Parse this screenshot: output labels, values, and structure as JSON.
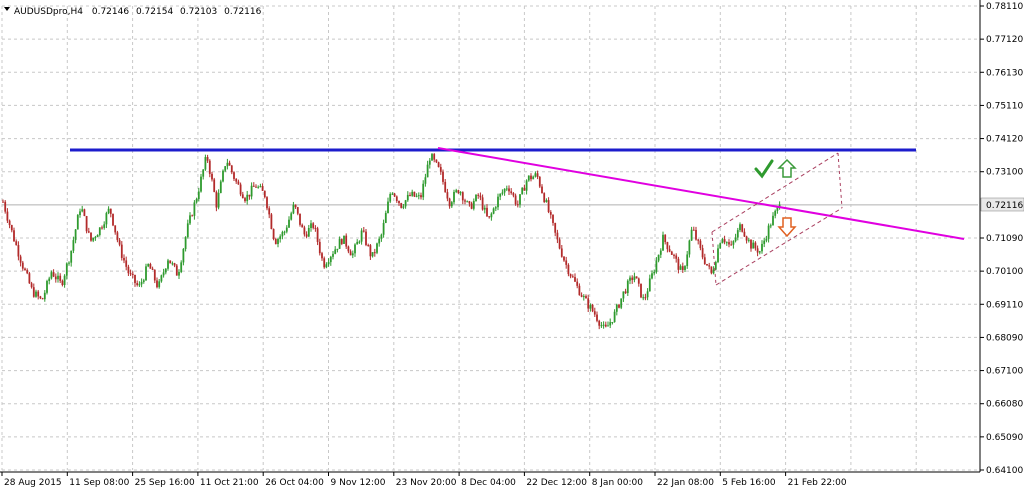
{
  "symbol_header": {
    "symbol": "AUDUSDpro,H4",
    "open": "0.72146",
    "high": "0.72154",
    "low": "0.72103",
    "close": "0.72116"
  },
  "current_price": "0.72116",
  "colors": {
    "bull": "#2e9a2e",
    "bear": "#b22a2a",
    "grid": "#c8c8c8",
    "resistance": "#1c1ccc",
    "trendline": "#e000e0",
    "channel": "#aa4060",
    "arrow_up": "#3a9a3a",
    "arrow_down": "#e06020",
    "check": "#2e9a2e"
  },
  "chart_data": {
    "type": "candlestick",
    "symbol": "AUDUSDpro",
    "timeframe": "H4",
    "y_ticks": [
      "0.78110",
      "0.77120",
      "0.76130",
      "0.75110",
      "0.74120",
      "0.73100",
      "0.72116",
      "0.71090",
      "0.70100",
      "0.69110",
      "0.68090",
      "0.67100",
      "0.66080",
      "0.65090",
      "0.64100"
    ],
    "x_ticks": [
      "28 Aug 2015",
      "11 Sep 08:00",
      "25 Sep 16:00",
      "11 Oct 21:00",
      "26 Oct 04:00",
      "9 Nov 12:00",
      "23 Nov 20:00",
      "8 Dec 04:00",
      "22 Dec 12:00",
      "8 Jan 00:00",
      "22 Jan 08:00",
      "5 Feb 16:00",
      "21 Feb 22:00"
    ],
    "ylim": [
      0.641,
      0.7811
    ],
    "last_price": 0.72116,
    "price_path": [
      [
        0.722,
        0.712,
        0.703,
        0.695,
        0.692,
        0.701,
        0.697,
        0.707,
        0.721,
        0.71,
        0.714,
        0.72,
        0.708,
        0.7,
        0.696,
        0.703,
        0.696,
        0.705,
        0.7,
        0.714,
        0.724,
        0.736,
        0.721,
        0.735,
        0.728,
        0.723,
        0.727,
        0.724,
        0.71,
        0.713,
        0.721,
        0.712,
        0.715,
        0.703,
        0.707,
        0.711,
        0.706,
        0.713,
        0.705,
        0.712,
        0.726,
        0.721,
        0.724,
        0.723,
        0.736,
        0.731,
        0.722,
        0.726,
        0.72,
        0.724,
        0.716,
        0.723,
        0.727,
        0.721,
        0.729,
        0.73,
        0.721,
        0.711,
        0.703,
        0.697,
        0.692,
        0.688,
        0.683,
        0.688,
        0.695,
        0.7,
        0.692,
        0.701,
        0.711,
        0.706,
        0.7,
        0.714,
        0.706,
        0.7,
        0.712,
        0.708,
        0.715,
        0.709,
        0.707,
        0.715,
        0.7212
      ]
    ],
    "annotations": {
      "resistance_level": 0.7374,
      "trendline_from": 0.7374,
      "trendline_to": 0.71
    }
  }
}
